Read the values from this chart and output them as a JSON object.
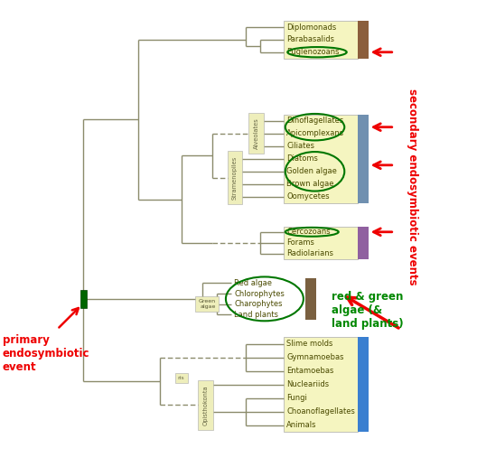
{
  "fig_w": 5.28,
  "fig_h": 5.17,
  "dpi": 100,
  "bg": "#ffffff",
  "tc": "#8b8b6b",
  "lw": 1.0,
  "fs": 6.0,
  "label_color": "#4a4a00",
  "excavata": {
    "taxa": [
      "Diplomonads",
      "Parabasalids",
      "Euglenozoans"
    ],
    "box_color": "#f5f5c0",
    "bar_color": "#8B5E3C",
    "yt": 0.955,
    "yb": 0.875,
    "bx": 0.595,
    "bw": 0.155
  },
  "sar": {
    "taxa": [
      "Dinoflagellates",
      "Apicomplexans",
      "Ciliates",
      "Diatoms",
      "Golden algae",
      "Brown algae",
      "Oomycetes"
    ],
    "box_color": "#f5f5c0",
    "bar_color": "#7090b0",
    "yt": 0.755,
    "yb": 0.565,
    "bx": 0.595,
    "bw": 0.155
  },
  "rhizaria": {
    "taxa": [
      "Cercozoans",
      "Forams",
      "Radiolarians"
    ],
    "box_color": "#f5f5c0",
    "bar_color": "#9060a0",
    "yt": 0.515,
    "yb": 0.445,
    "bx": 0.595,
    "bw": 0.155
  },
  "archaeplastida": {
    "taxa": [
      "Red algae",
      "Chlorophytes",
      "Charophytes",
      "Land plants"
    ],
    "bar_color": "#7a6040",
    "yt": 0.405,
    "yb": 0.315,
    "bx": 0.485,
    "bw": 0.155
  },
  "amoeba": {
    "taxa": [
      "Slime molds",
      "Gymnamoebas",
      "Entamoebas",
      "Nucleariids",
      "Fungi",
      "Choanoflagellates",
      "Animals"
    ],
    "box_color": "#f5f5c0",
    "bar_color": "#3a7fd0",
    "yt": 0.278,
    "yb": 0.075,
    "bx": 0.595,
    "bw": 0.155
  },
  "red_arrow": "#ee0000",
  "green_circle": "#007700",
  "green_text": "#008800",
  "red_text": "#ee0000",
  "blue_text": "#0000cc"
}
